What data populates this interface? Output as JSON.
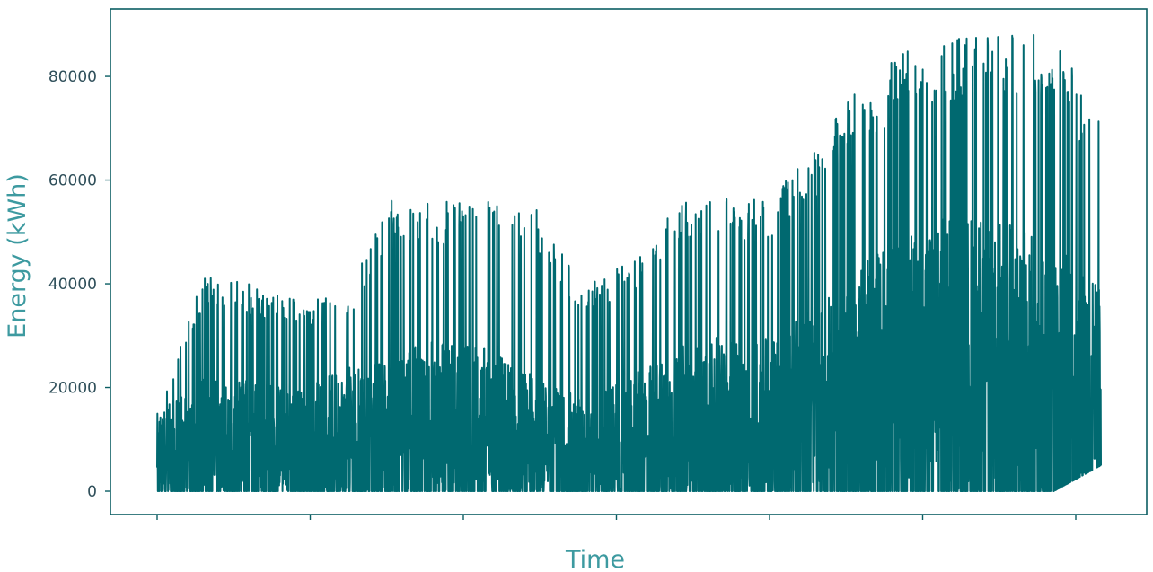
{
  "chart_data": {
    "type": "line",
    "title": "",
    "xlabel": "Time",
    "ylabel": "Energy (kWh)",
    "ylim": [
      -4500,
      93000
    ],
    "y_ticks": [
      0,
      20000,
      40000,
      60000,
      80000
    ],
    "y_tick_labels": [
      "0",
      "20000",
      "40000",
      "60000",
      "80000"
    ],
    "x_tick_count": 7,
    "x_tick_labels": [],
    "grid": false,
    "legend": "none",
    "color": "#006970",
    "frame_color": "#0b5e63",
    "approx_points": 4000,
    "series": [
      {
        "x": [
          0,
          0.05,
          0.1,
          0.15,
          0.2,
          0.25,
          0.3,
          0.35,
          0.4,
          0.45,
          0.5,
          0.55,
          0.6,
          0.65,
          0.7,
          0.75,
          0.8,
          0.85,
          0.9,
          0.95,
          1.0
        ],
        "upper_envelope": [
          15000,
          42000,
          40000,
          37000,
          38000,
          57000,
          56000,
          57000,
          55000,
          40000,
          44000,
          56000,
          57000,
          57000,
          67000,
          80000,
          86000,
          88000,
          89000,
          88000,
          72000
        ],
        "typical_range": [
          [
            0,
            15000
          ],
          [
            0,
            22000
          ],
          [
            0,
            22000
          ],
          [
            0,
            20000
          ],
          [
            0,
            24000
          ],
          [
            0,
            26000
          ],
          [
            0,
            30000
          ],
          [
            0,
            28000
          ],
          [
            0,
            22000
          ],
          [
            0,
            18000
          ],
          [
            0,
            22000
          ],
          [
            0,
            28000
          ],
          [
            0,
            30000
          ],
          [
            0,
            30000
          ],
          [
            0,
            35000
          ],
          [
            0,
            45000
          ],
          [
            0,
            50000
          ],
          [
            0,
            55000
          ],
          [
            0,
            52000
          ],
          [
            0,
            48000
          ],
          [
            5000,
            40000
          ]
        ]
      }
    ]
  }
}
